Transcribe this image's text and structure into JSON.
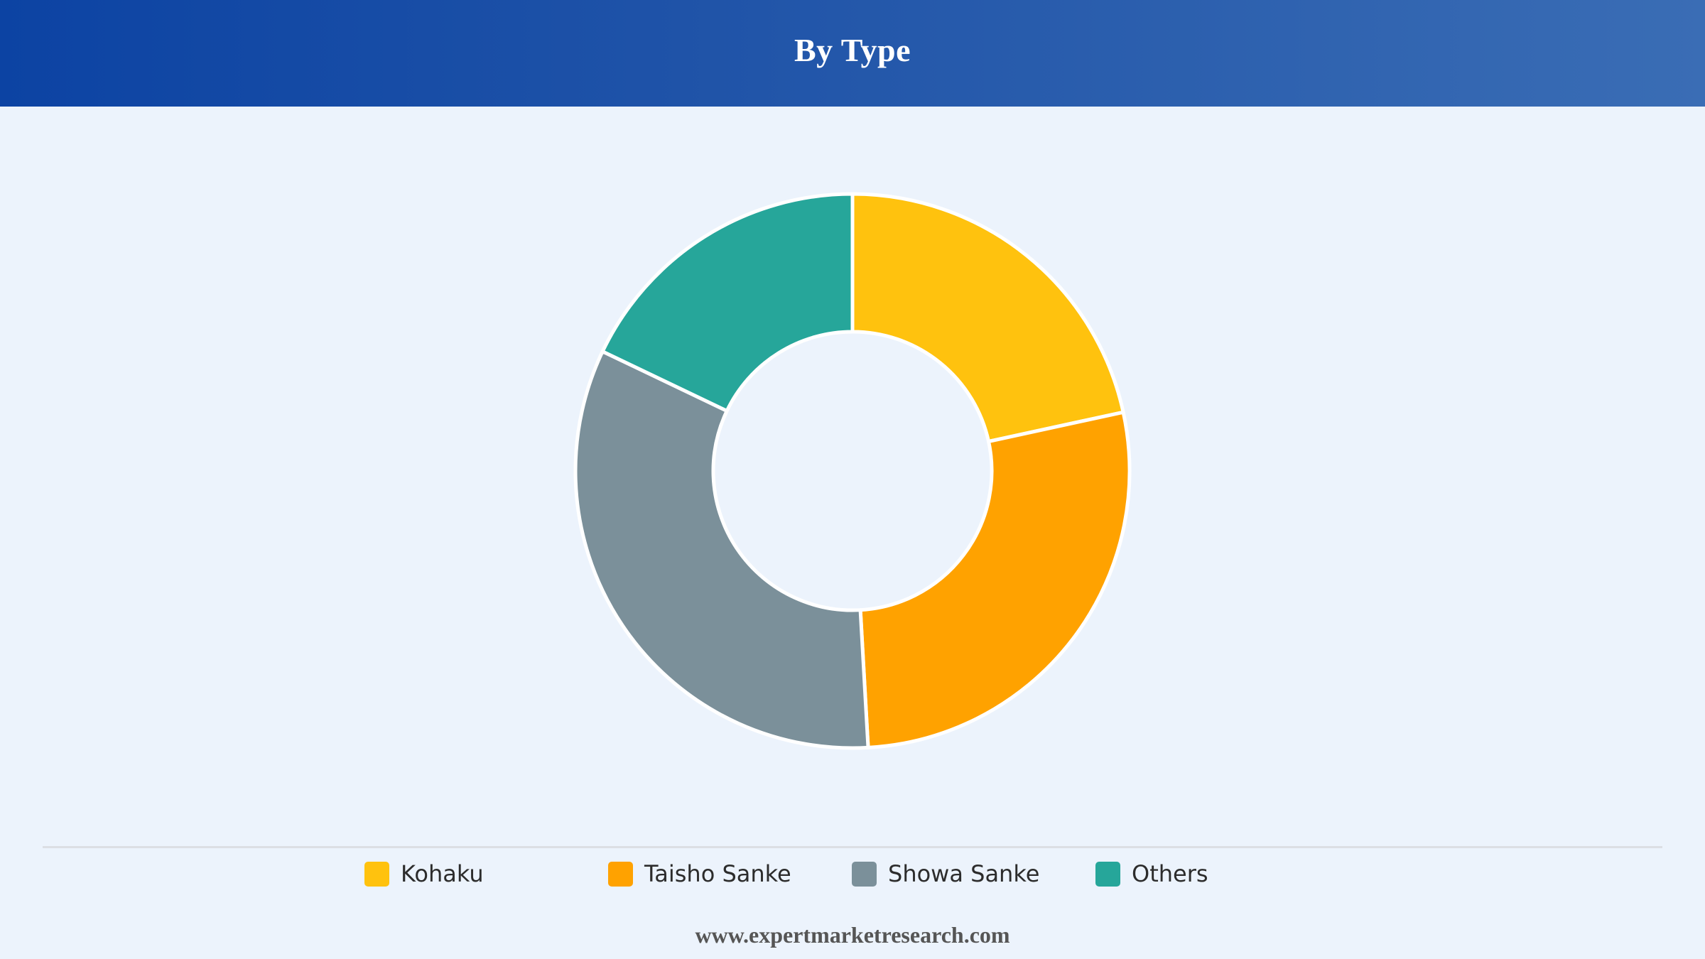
{
  "header": {
    "title": "By Type"
  },
  "chart_data": {
    "type": "pie",
    "donut": true,
    "title": "By Type",
    "categories": [
      "Kohaku",
      "Taisho Sanke",
      "Showa Sanke",
      "Others"
    ],
    "values": [
      21.6,
      27.5,
      33.0,
      17.9
    ],
    "colors": [
      "#ffc20e",
      "#ffa200",
      "#7b909a",
      "#26a69a"
    ],
    "legend_position": "bottom"
  },
  "footer": {
    "url": "www.expertmarketresearch.com"
  }
}
